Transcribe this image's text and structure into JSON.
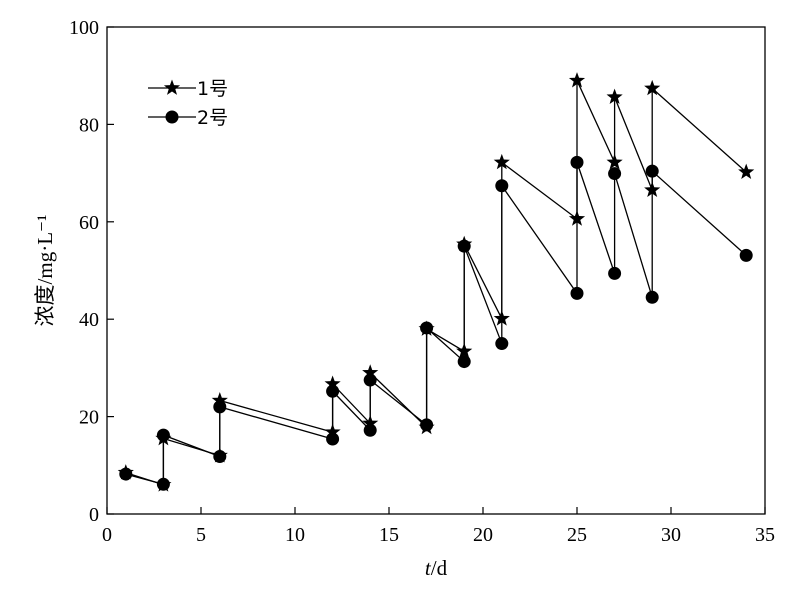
{
  "chart_data": {
    "type": "line",
    "title": "",
    "xlabel": "t/d",
    "ylabel": "浓度/mg·L⁻¹",
    "xlim": [
      0,
      35
    ],
    "ylim": [
      0,
      100
    ],
    "xticks": [
      0,
      5,
      10,
      15,
      20,
      25,
      30,
      35
    ],
    "yticks": [
      0,
      20,
      40,
      60,
      80,
      100
    ],
    "grid": false,
    "legend_position": "top-left",
    "series": [
      {
        "name": "1号",
        "marker": "star",
        "color": "#000000",
        "x": [
          1,
          3,
          3,
          6,
          6,
          12,
          12,
          14,
          14,
          17,
          17,
          19,
          19,
          21,
          21,
          25,
          25,
          27,
          27,
          29,
          29,
          34
        ],
        "y": [
          8.5,
          6.0,
          15.5,
          12.0,
          23.3,
          16.8,
          26.7,
          18.6,
          29.0,
          17.8,
          38.0,
          33.4,
          55.4,
          40.1,
          72.2,
          60.6,
          89.0,
          72.2,
          85.6,
          66.5,
          87.4,
          70.2
        ]
      },
      {
        "name": "2号",
        "marker": "circle",
        "color": "#000000",
        "x": [
          1,
          3,
          3,
          6,
          6,
          12,
          12,
          14,
          14,
          17,
          17,
          19,
          19,
          21,
          21,
          25,
          25,
          27,
          27,
          29,
          29,
          34
        ],
        "y": [
          8.2,
          6.1,
          16.2,
          11.8,
          22.0,
          15.4,
          25.2,
          17.2,
          27.5,
          18.3,
          38.2,
          31.3,
          55.0,
          35.0,
          67.4,
          45.3,
          72.2,
          49.4,
          69.9,
          44.5,
          70.4,
          53.1
        ]
      }
    ]
  }
}
